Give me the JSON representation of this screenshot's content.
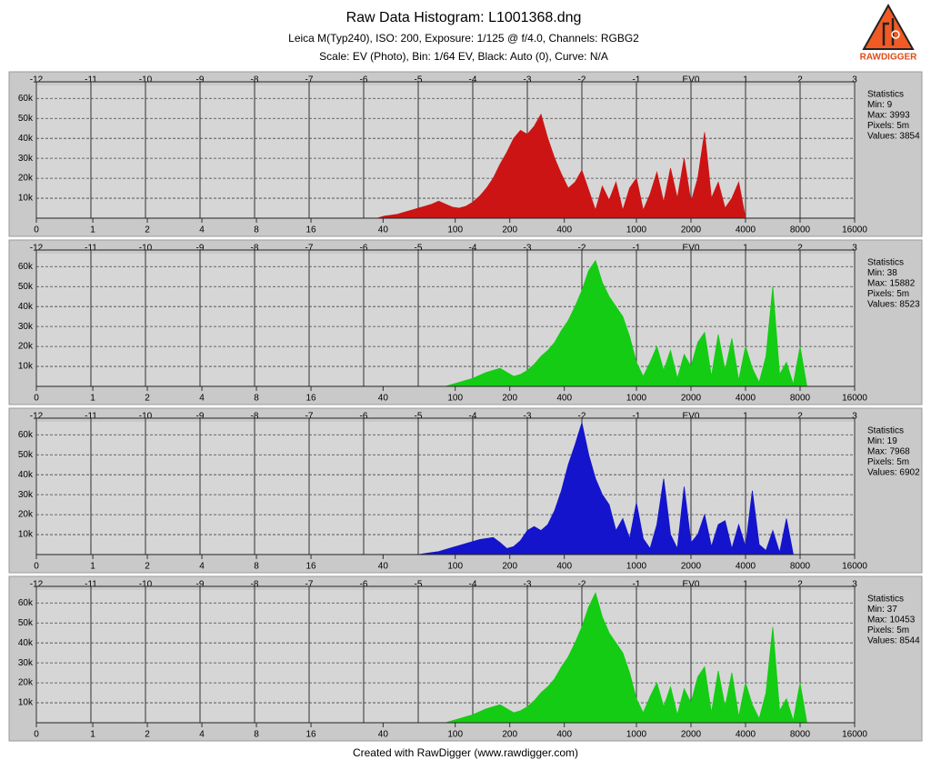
{
  "header": {
    "title": "Raw Data Histogram: L1001368.dng",
    "line1": "Leica M(Typ240), ISO: 200, Exposure: 1/125 @ f/4.0, Channels: RGBG2",
    "line2": "Scale: EV (Photo), Bin: 1/64 EV, Black: Auto (0), Curve: N/A"
  },
  "logo_text": "RAWDIGGER",
  "footer": "Created with RawDigger (www.rawdigger.com)",
  "chart_data": [
    {
      "type": "area",
      "color": "#cc1414",
      "grid": true,
      "xlim": [
        -12,
        3
      ],
      "ylim": [
        0,
        66500
      ],
      "xticks": [
        -12,
        -11,
        -10,
        -9,
        -8,
        -7,
        -6,
        -5,
        -4,
        -3,
        -2,
        -1,
        {
          "value": 0,
          "label": "EV0"
        },
        1,
        2,
        3
      ],
      "x2ticks": [
        0,
        1,
        2,
        4,
        8,
        16,
        40,
        100,
        200,
        400,
        1000,
        2000,
        4000,
        8000,
        16000
      ],
      "yticks": [
        {
          "value": 10000,
          "label": "10k"
        },
        {
          "value": 20000,
          "label": "20k"
        },
        {
          "value": 30000,
          "label": "30k"
        },
        {
          "value": 40000,
          "label": "40k"
        },
        {
          "value": 50000,
          "label": "50k"
        },
        {
          "value": 60000,
          "label": "60k"
        }
      ],
      "stats": [
        "Statistics",
        "Min: 9",
        "Max: 3993",
        "Pixels: 5m",
        "Values: 3854"
      ],
      "x": [
        -5.75,
        -5.625,
        -5.5,
        -5.375,
        -5.25,
        -5.125,
        -5,
        -4.875,
        -4.75,
        -4.625,
        -4.5,
        -4.375,
        -4.25,
        -4.125,
        -4,
        -3.875,
        -3.75,
        -3.625,
        -3.5,
        -3.375,
        -3.25,
        -3.125,
        -3,
        -2.875,
        -2.75,
        -2.625,
        -2.5,
        -2.375,
        -2.25,
        -2.125,
        -2,
        -1.875,
        -1.75,
        -1.625,
        -1.5,
        -1.375,
        -1.25,
        -1.125,
        -1,
        -0.875,
        -0.75,
        -0.625,
        -0.5,
        -0.375,
        -0.25,
        -0.125,
        0,
        0.125,
        0.25,
        0.375,
        0.5,
        0.625,
        0.75,
        0.875,
        1
      ],
      "values": [
        0,
        1000,
        1500,
        2000,
        3000,
        4000,
        5000,
        6000,
        7000,
        8500,
        7000,
        5500,
        5000,
        6000,
        8000,
        11000,
        15000,
        20000,
        27000,
        33000,
        40000,
        44000,
        42000,
        46000,
        52000,
        40000,
        30000,
        22000,
        15000,
        18000,
        24000,
        14000,
        4000,
        16000,
        9000,
        18000,
        4000,
        15000,
        20000,
        4000,
        12000,
        23000,
        8000,
        25000,
        10000,
        30000,
        8000,
        20000,
        43000,
        10000,
        18000,
        5000,
        10000,
        18000,
        0
      ]
    },
    {
      "type": "area",
      "color": "#14cc14",
      "grid": true,
      "xlim": [
        -12,
        3
      ],
      "ylim": [
        0,
        66500
      ],
      "xticks": [
        -12,
        -11,
        -10,
        -9,
        -8,
        -7,
        -6,
        -5,
        -4,
        -3,
        -2,
        -1,
        {
          "value": 0,
          "label": "EV0"
        },
        1,
        2,
        3
      ],
      "x2ticks": [
        0,
        1,
        2,
        4,
        8,
        16,
        40,
        100,
        200,
        400,
        1000,
        2000,
        4000,
        8000,
        16000
      ],
      "yticks": [
        {
          "value": 10000,
          "label": "10k"
        },
        {
          "value": 20000,
          "label": "20k"
        },
        {
          "value": 30000,
          "label": "30k"
        },
        {
          "value": 40000,
          "label": "40k"
        },
        {
          "value": 50000,
          "label": "50k"
        },
        {
          "value": 60000,
          "label": "60k"
        }
      ],
      "stats": [
        "Statistics",
        "Min: 38",
        "Max: 15882",
        "Pixels: 5m",
        "Values: 8523"
      ],
      "x": [
        -4.5,
        -4.375,
        -4.25,
        -4.125,
        -4,
        -3.875,
        -3.75,
        -3.625,
        -3.5,
        -3.375,
        -3.25,
        -3.125,
        -3,
        -2.875,
        -2.75,
        -2.625,
        -2.5,
        -2.375,
        -2.25,
        -2.125,
        -2,
        -1.875,
        -1.75,
        -1.625,
        -1.5,
        -1.375,
        -1.25,
        -1.125,
        -1,
        -0.875,
        -0.75,
        -0.625,
        -0.5,
        -0.375,
        -0.25,
        -0.125,
        0,
        0.125,
        0.25,
        0.375,
        0.5,
        0.625,
        0.75,
        0.875,
        1,
        1.125,
        1.25,
        1.375,
        1.5,
        1.625,
        1.75,
        1.875,
        2,
        2.125
      ],
      "values": [
        0,
        1000,
        2000,
        3000,
        4000,
        5500,
        7000,
        8000,
        9000,
        7000,
        5000,
        6000,
        8000,
        11000,
        15000,
        18000,
        22000,
        28000,
        33000,
        40000,
        48000,
        58000,
        63000,
        52000,
        45000,
        40000,
        35000,
        25000,
        12000,
        5000,
        12000,
        20000,
        8000,
        18000,
        4000,
        16000,
        10000,
        22000,
        27000,
        5000,
        26000,
        8000,
        24000,
        3000,
        20000,
        9000,
        2000,
        15000,
        50000,
        6000,
        12000,
        1000,
        20000,
        0
      ]
    },
    {
      "type": "area",
      "color": "#1414cc",
      "grid": true,
      "xlim": [
        -12,
        3
      ],
      "ylim": [
        0,
        66500
      ],
      "xticks": [
        -12,
        -11,
        -10,
        -9,
        -8,
        -7,
        -6,
        -5,
        -4,
        -3,
        -2,
        -1,
        {
          "value": 0,
          "label": "EV0"
        },
        1,
        2,
        3
      ],
      "x2ticks": [
        0,
        1,
        2,
        4,
        8,
        16,
        40,
        100,
        200,
        400,
        1000,
        2000,
        4000,
        8000,
        16000
      ],
      "yticks": [
        {
          "value": 10000,
          "label": "10k"
        },
        {
          "value": 20000,
          "label": "20k"
        },
        {
          "value": 30000,
          "label": "30k"
        },
        {
          "value": 40000,
          "label": "40k"
        },
        {
          "value": 50000,
          "label": "50k"
        },
        {
          "value": 60000,
          "label": "60k"
        }
      ],
      "stats": [
        "Statistics",
        "Min: 19",
        "Max: 7968",
        "Pixels: 5m",
        "Values: 6902"
      ],
      "x": [
        -5,
        -4.875,
        -4.75,
        -4.625,
        -4.5,
        -4.375,
        -4.25,
        -4.125,
        -4,
        -3.875,
        -3.75,
        -3.625,
        -3.5,
        -3.375,
        -3.25,
        -3.125,
        -3,
        -2.875,
        -2.75,
        -2.625,
        -2.5,
        -2.375,
        -2.25,
        -2.125,
        -2,
        -1.875,
        -1.75,
        -1.625,
        -1.5,
        -1.375,
        -1.25,
        -1.125,
        -1,
        -0.875,
        -0.75,
        -0.625,
        -0.5,
        -0.375,
        -0.25,
        -0.125,
        0,
        0.125,
        0.25,
        0.375,
        0.5,
        0.625,
        0.75,
        0.875,
        1,
        1.125,
        1.25,
        1.375,
        1.5,
        1.625,
        1.75,
        1.875
      ],
      "values": [
        0,
        500,
        1000,
        1500,
        2500,
        3500,
        4500,
        5500,
        6500,
        7500,
        8000,
        8500,
        6000,
        3000,
        4000,
        7000,
        12000,
        14000,
        12000,
        15000,
        22000,
        32000,
        45000,
        55000,
        66000,
        50000,
        38000,
        30000,
        25000,
        12000,
        18000,
        8000,
        26000,
        8000,
        3000,
        15000,
        38000,
        10000,
        3000,
        34000,
        6000,
        10000,
        20000,
        4000,
        15000,
        17000,
        3000,
        15000,
        4000,
        32000,
        5000,
        2000,
        12000,
        1000,
        18000,
        0
      ]
    },
    {
      "type": "area",
      "color": "#14cc14",
      "grid": true,
      "xlim": [
        -12,
        3
      ],
      "ylim": [
        0,
        66500
      ],
      "xticks": [
        -12,
        -11,
        -10,
        -9,
        -8,
        -7,
        -6,
        -5,
        -4,
        -3,
        -2,
        -1,
        {
          "value": 0,
          "label": "EV0"
        },
        1,
        2,
        3
      ],
      "x2ticks": [
        0,
        1,
        2,
        4,
        8,
        16,
        40,
        100,
        200,
        400,
        1000,
        2000,
        4000,
        8000,
        16000
      ],
      "yticks": [
        {
          "value": 10000,
          "label": "10k"
        },
        {
          "value": 20000,
          "label": "20k"
        },
        {
          "value": 30000,
          "label": "30k"
        },
        {
          "value": 40000,
          "label": "40k"
        },
        {
          "value": 50000,
          "label": "50k"
        },
        {
          "value": 60000,
          "label": "60k"
        }
      ],
      "stats": [
        "Statistics",
        "Min: 37",
        "Max: 10453",
        "Pixels: 5m",
        "Values: 8544"
      ],
      "x": [
        -4.5,
        -4.375,
        -4.25,
        -4.125,
        -4,
        -3.875,
        -3.75,
        -3.625,
        -3.5,
        -3.375,
        -3.25,
        -3.125,
        -3,
        -2.875,
        -2.75,
        -2.625,
        -2.5,
        -2.375,
        -2.25,
        -2.125,
        -2,
        -1.875,
        -1.75,
        -1.625,
        -1.5,
        -1.375,
        -1.25,
        -1.125,
        -1,
        -0.875,
        -0.75,
        -0.625,
        -0.5,
        -0.375,
        -0.25,
        -0.125,
        0,
        0.125,
        0.25,
        0.375,
        0.5,
        0.625,
        0.75,
        0.875,
        1,
        1.125,
        1.25,
        1.375,
        1.5,
        1.625,
        1.75,
        1.875,
        2,
        2.125
      ],
      "values": [
        0,
        1000,
        2000,
        3000,
        4000,
        5500,
        7000,
        8000,
        9000,
        7000,
        5000,
        6000,
        8000,
        11000,
        15000,
        18000,
        22000,
        28000,
        33000,
        40000,
        48000,
        58000,
        65000,
        53000,
        45000,
        40000,
        35000,
        25000,
        12000,
        5000,
        13000,
        20000,
        8000,
        18000,
        4000,
        17000,
        10000,
        23000,
        28000,
        5000,
        26000,
        8000,
        25000,
        3000,
        20000,
        9000,
        2000,
        15000,
        48000,
        6000,
        12000,
        1000,
        20000,
        0
      ]
    }
  ]
}
